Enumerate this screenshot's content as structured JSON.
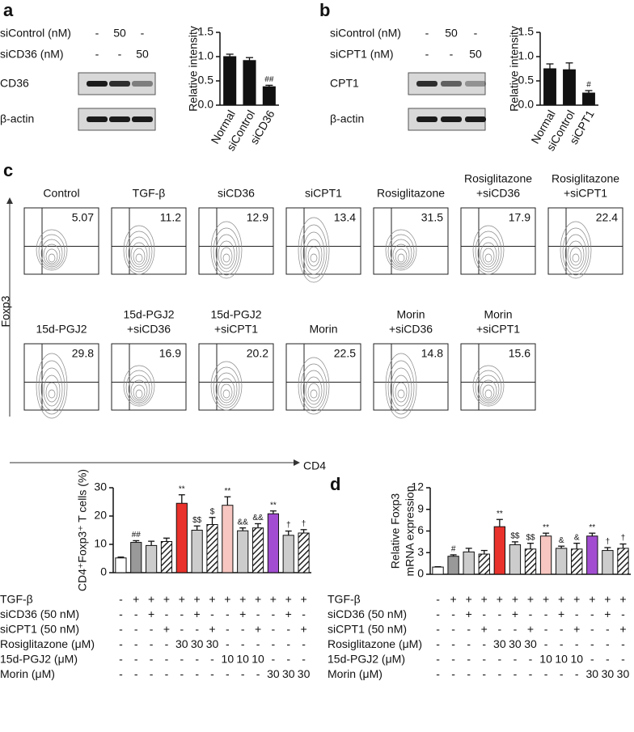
{
  "panel_labels": [
    "a",
    "b",
    "c",
    "d"
  ],
  "blots": [
    {
      "rows": [
        {
          "label": "siControl (nM)",
          "cells": [
            "-",
            "50",
            "-"
          ]
        },
        {
          "label": "siCD36 (nM)",
          "cells": [
            "-",
            "-",
            "50"
          ]
        }
      ],
      "bands": [
        "CD36",
        "β-actin"
      ]
    },
    {
      "rows": [
        {
          "label": "siControl (nM)",
          "cells": [
            "-",
            "50",
            "-"
          ]
        },
        {
          "label": "siCPT1 (nM)",
          "cells": [
            "-",
            "-",
            "50"
          ]
        }
      ],
      "bands": [
        "CPT1",
        "β-actin"
      ]
    }
  ],
  "flow": {
    "y_label": "Foxp3",
    "x_label": "CD4",
    "panels": [
      {
        "title": [
          "Control"
        ],
        "value": 5.07
      },
      {
        "title": [
          "TGF-β"
        ],
        "value": 11.2
      },
      {
        "title": [
          "siCD36"
        ],
        "value": 12.9
      },
      {
        "title": [
          "siCPT1"
        ],
        "value": 13.4
      },
      {
        "title": [
          "Rosiglitazone"
        ],
        "value": 31.5
      },
      {
        "title": [
          "Rosiglitazone",
          "+siCD36"
        ],
        "value": 17.9
      },
      {
        "title": [
          "Rosiglitazone",
          "+siCPT1"
        ],
        "value": 22.4
      },
      {
        "title": [
          "15d-PGJ2"
        ],
        "value": 29.8
      },
      {
        "title": [
          "15d-PGJ2",
          "+siCD36"
        ],
        "value": 16.9
      },
      {
        "title": [
          "15d-PGJ2",
          "+siCPT1"
        ],
        "value": 20.2
      },
      {
        "title": [
          "Morin"
        ],
        "value": 22.5
      },
      {
        "title": [
          "Morin",
          "+siCD36"
        ],
        "value": 14.8
      },
      {
        "title": [
          "Morin",
          "+siCPT1"
        ],
        "value": 15.6
      }
    ]
  },
  "chart_data": [
    {
      "type": "bar",
      "y_label": [
        "Relative intensity"
      ],
      "categories": [
        "Normal",
        "siControl",
        "siCD36"
      ],
      "values": [
        1.0,
        0.92,
        0.38
      ],
      "errors": [
        0.05,
        0.06,
        0.03
      ],
      "annotations": [
        null,
        null,
        "##"
      ],
      "colors": [
        "#111111",
        "#111111",
        "#111111"
      ],
      "hatched": [
        false,
        false,
        false
      ],
      "ylim": [
        0,
        1.5
      ],
      "yticks": [
        {
          "value": 0,
          "label": "0.0"
        },
        0.5,
        {
          "value": 1,
          "label": "1.0"
        },
        1.5
      ]
    },
    {
      "type": "bar",
      "y_label": [
        "Relative intensity"
      ],
      "categories": [
        "Normal",
        "siControl",
        "siCPT1"
      ],
      "values": [
        0.75,
        0.73,
        0.25
      ],
      "errors": [
        0.1,
        0.14,
        0.05
      ],
      "annotations": [
        null,
        null,
        "#"
      ],
      "colors": [
        "#111111",
        "#111111",
        "#111111"
      ],
      "hatched": [
        false,
        false,
        false
      ],
      "ylim": [
        0,
        1.5
      ],
      "yticks": [
        {
          "value": 0,
          "label": "0.0"
        },
        0.5,
        {
          "value": 1,
          "label": "1.0"
        },
        1.5
      ]
    },
    {
      "type": "bar",
      "y_label": [
        "CD4⁺Foxp3⁺ T cells (%)"
      ],
      "values": [
        5.2,
        10.7,
        9.6,
        11.0,
        24.5,
        15.0,
        17.0,
        23.8,
        14.8,
        15.8,
        20.8,
        13.2,
        14.0
      ],
      "errors": [
        0.3,
        0.6,
        1.5,
        1.2,
        3.0,
        1.5,
        2.5,
        3.0,
        1.0,
        1.5,
        1.0,
        1.5,
        1.2
      ],
      "annotations": [
        null,
        "##",
        null,
        null,
        "**",
        "$$",
        "$",
        "**",
        "&&",
        "&&",
        "**",
        "†",
        "†"
      ],
      "colors": [
        "#ffffff",
        "#999999",
        "#cccccc",
        "#ffffff",
        "#e8322b",
        "#cccccc",
        "#ffffff",
        "#f7c6c0",
        "#cccccc",
        "#ffffff",
        "#a24dd1",
        "#cccccc",
        "#ffffff"
      ],
      "hatched": [
        false,
        false,
        false,
        true,
        false,
        false,
        true,
        false,
        false,
        true,
        false,
        false,
        true
      ],
      "ylim": [
        0,
        30
      ],
      "yticks": [
        0,
        10,
        20,
        30
      ],
      "treatments": [
        {
          "label": "TGF-β",
          "cells": [
            "-",
            "+",
            "+",
            "+",
            "+",
            "+",
            "+",
            "+",
            "+",
            "+",
            "+",
            "+",
            "+"
          ]
        },
        {
          "label": "siCD36 (50 nM)",
          "cells": [
            "-",
            "-",
            "+",
            "-",
            "-",
            "+",
            "-",
            "-",
            "+",
            "-",
            "-",
            "+",
            "-"
          ]
        },
        {
          "label": "siCPT1 (50 nM)",
          "cells": [
            "-",
            "-",
            "-",
            "+",
            "-",
            "-",
            "+",
            "-",
            "-",
            "+",
            "-",
            "-",
            "+"
          ]
        },
        {
          "label": "Rosiglitazone (μM)",
          "cells": [
            "-",
            "-",
            "-",
            "-",
            "30",
            "30",
            "30",
            "-",
            "-",
            "-",
            "-",
            "-",
            "-"
          ]
        },
        {
          "label": "15d-PGJ2 (μM)",
          "cells": [
            "-",
            "-",
            "-",
            "-",
            "-",
            "-",
            "-",
            "10",
            "10",
            "10",
            "-",
            "-",
            "-"
          ]
        },
        {
          "label": "Morin (μM)",
          "cells": [
            "-",
            "-",
            "-",
            "-",
            "-",
            "-",
            "-",
            "-",
            "-",
            "-",
            "30",
            "30",
            "30"
          ]
        }
      ]
    },
    {
      "type": "bar",
      "y_label": [
        "Relative Foxp3",
        "mRNA expression"
      ],
      "values": [
        1.0,
        2.5,
        3.1,
        2.8,
        6.6,
        4.1,
        3.5,
        5.3,
        3.6,
        3.5,
        5.3,
        3.3,
        3.6
      ],
      "errors": [
        0.05,
        0.2,
        0.5,
        0.5,
        1.0,
        0.4,
        0.8,
        0.4,
        0.3,
        0.8,
        0.4,
        0.4,
        0.6
      ],
      "annotations": [
        null,
        "#",
        null,
        null,
        "**",
        "$$",
        "$$",
        "**",
        "&",
        "&",
        "**",
        "†",
        "†"
      ],
      "colors": [
        "#ffffff",
        "#999999",
        "#cccccc",
        "#ffffff",
        "#e8322b",
        "#cccccc",
        "#ffffff",
        "#f7c6c0",
        "#cccccc",
        "#ffffff",
        "#a24dd1",
        "#cccccc",
        "#ffffff"
      ],
      "hatched": [
        false,
        false,
        false,
        true,
        false,
        false,
        true,
        false,
        false,
        true,
        false,
        false,
        true
      ],
      "ylim": [
        0,
        12
      ],
      "yticks": [
        0,
        3,
        6,
        9,
        12
      ],
      "treatments": [
        {
          "label": "TGF-β",
          "cells": [
            "-",
            "+",
            "+",
            "+",
            "+",
            "+",
            "+",
            "+",
            "+",
            "+",
            "+",
            "+",
            "+"
          ]
        },
        {
          "label": "siCD36 (50 nM)",
          "cells": [
            "-",
            "-",
            "+",
            "-",
            "-",
            "+",
            "-",
            "-",
            "+",
            "-",
            "-",
            "+",
            "-"
          ]
        },
        {
          "label": "siCPT1 (50 nM)",
          "cells": [
            "-",
            "-",
            "-",
            "+",
            "-",
            "-",
            "+",
            "-",
            "-",
            "+",
            "-",
            "-",
            "+"
          ]
        },
        {
          "label": "Rosiglitazone (μM)",
          "cells": [
            "-",
            "-",
            "-",
            "-",
            "30",
            "30",
            "30",
            "-",
            "-",
            "-",
            "-",
            "-",
            "-"
          ]
        },
        {
          "label": "15d-PGJ2 (μM)",
          "cells": [
            "-",
            "-",
            "-",
            "-",
            "-",
            "-",
            "-",
            "10",
            "10",
            "10",
            "-",
            "-",
            "-"
          ]
        },
        {
          "label": "Morin (μM)",
          "cells": [
            "-",
            "-",
            "-",
            "-",
            "-",
            "-",
            "-",
            "-",
            "-",
            "-",
            "30",
            "30",
            "30"
          ]
        }
      ]
    }
  ]
}
